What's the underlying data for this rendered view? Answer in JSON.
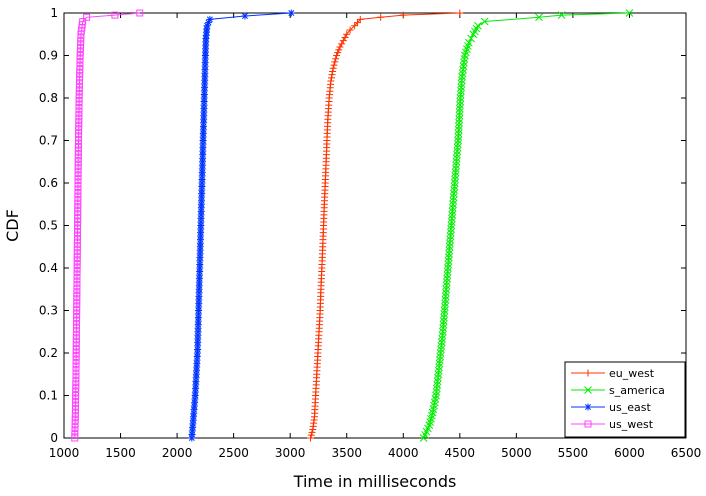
{
  "chart_data": {
    "type": "line",
    "title": "",
    "xlabel": "Time in milliseconds",
    "ylabel": "CDF",
    "xlim": [
      1000,
      6500
    ],
    "ylim": [
      0,
      1
    ],
    "xticks": [
      1000,
      1500,
      2000,
      2500,
      3000,
      3500,
      4000,
      4500,
      5000,
      5500,
      6000,
      6500
    ],
    "yticks": [
      0,
      0.1,
      0.2,
      0.3,
      0.4,
      0.5,
      0.6,
      0.7,
      0.8,
      0.9,
      1
    ],
    "grid": false,
    "legend_position": "bottom-right",
    "series": [
      {
        "name": "eu_west",
        "color": "#ff3300",
        "marker": "plus",
        "points": [
          [
            3180,
            0
          ],
          [
            3200,
            0.02
          ],
          [
            3215,
            0.05
          ],
          [
            3225,
            0.1
          ],
          [
            3235,
            0.15
          ],
          [
            3245,
            0.2
          ],
          [
            3255,
            0.25
          ],
          [
            3265,
            0.3
          ],
          [
            3272,
            0.35
          ],
          [
            3280,
            0.4
          ],
          [
            3288,
            0.45
          ],
          [
            3295,
            0.5
          ],
          [
            3302,
            0.55
          ],
          [
            3310,
            0.6
          ],
          [
            3318,
            0.65
          ],
          [
            3325,
            0.7
          ],
          [
            3333,
            0.75
          ],
          [
            3345,
            0.8
          ],
          [
            3360,
            0.84
          ],
          [
            3380,
            0.87
          ],
          [
            3410,
            0.9
          ],
          [
            3440,
            0.92
          ],
          [
            3470,
            0.935
          ],
          [
            3500,
            0.95
          ],
          [
            3530,
            0.96
          ],
          [
            3570,
            0.97
          ],
          [
            3620,
            0.985
          ],
          [
            3800,
            0.99
          ],
          [
            4000,
            0.995
          ],
          [
            4500,
            1.0
          ]
        ]
      },
      {
        "name": "s_america",
        "color": "#00ee00",
        "marker": "cross",
        "points": [
          [
            4180,
            0
          ],
          [
            4230,
            0.03
          ],
          [
            4260,
            0.06
          ],
          [
            4290,
            0.1
          ],
          [
            4310,
            0.15
          ],
          [
            4330,
            0.2
          ],
          [
            4350,
            0.25
          ],
          [
            4365,
            0.3
          ],
          [
            4380,
            0.35
          ],
          [
            4395,
            0.4
          ],
          [
            4410,
            0.45
          ],
          [
            4425,
            0.5
          ],
          [
            4440,
            0.55
          ],
          [
            4455,
            0.6
          ],
          [
            4470,
            0.65
          ],
          [
            4485,
            0.7
          ],
          [
            4495,
            0.75
          ],
          [
            4505,
            0.8
          ],
          [
            4520,
            0.85
          ],
          [
            4545,
            0.9
          ],
          [
            4580,
            0.93
          ],
          [
            4620,
            0.95
          ],
          [
            4660,
            0.97
          ],
          [
            4720,
            0.98
          ],
          [
            5200,
            0.99
          ],
          [
            5400,
            0.995
          ],
          [
            6000,
            1.0
          ]
        ]
      },
      {
        "name": "us_east",
        "color": "#0033ff",
        "marker": "star",
        "points": [
          [
            2130,
            0
          ],
          [
            2145,
            0.05
          ],
          [
            2160,
            0.1
          ],
          [
            2170,
            0.15
          ],
          [
            2180,
            0.2
          ],
          [
            2185,
            0.25
          ],
          [
            2190,
            0.3
          ],
          [
            2195,
            0.35
          ],
          [
            2200,
            0.4
          ],
          [
            2205,
            0.45
          ],
          [
            2210,
            0.5
          ],
          [
            2215,
            0.55
          ],
          [
            2220,
            0.6
          ],
          [
            2225,
            0.65
          ],
          [
            2230,
            0.7
          ],
          [
            2235,
            0.75
          ],
          [
            2240,
            0.8
          ],
          [
            2245,
            0.85
          ],
          [
            2250,
            0.9
          ],
          [
            2255,
            0.94
          ],
          [
            2265,
            0.97
          ],
          [
            2290,
            0.985
          ],
          [
            2600,
            0.993
          ],
          [
            3010,
            1.0
          ]
        ]
      },
      {
        "name": "us_west",
        "color": "#ff44ff",
        "marker": "square",
        "points": [
          [
            1095,
            0
          ],
          [
            1100,
            0.05
          ],
          [
            1103,
            0.1
          ],
          [
            1106,
            0.15
          ],
          [
            1108,
            0.2
          ],
          [
            1110,
            0.25
          ],
          [
            1112,
            0.3
          ],
          [
            1114,
            0.35
          ],
          [
            1116,
            0.4
          ],
          [
            1118,
            0.45
          ],
          [
            1120,
            0.5
          ],
          [
            1122,
            0.55
          ],
          [
            1124,
            0.6
          ],
          [
            1126,
            0.65
          ],
          [
            1128,
            0.7
          ],
          [
            1131,
            0.75
          ],
          [
            1134,
            0.8
          ],
          [
            1138,
            0.85
          ],
          [
            1143,
            0.9
          ],
          [
            1150,
            0.95
          ],
          [
            1165,
            0.98
          ],
          [
            1200,
            0.99
          ],
          [
            1450,
            0.995
          ],
          [
            1670,
            1.0
          ]
        ]
      }
    ]
  }
}
